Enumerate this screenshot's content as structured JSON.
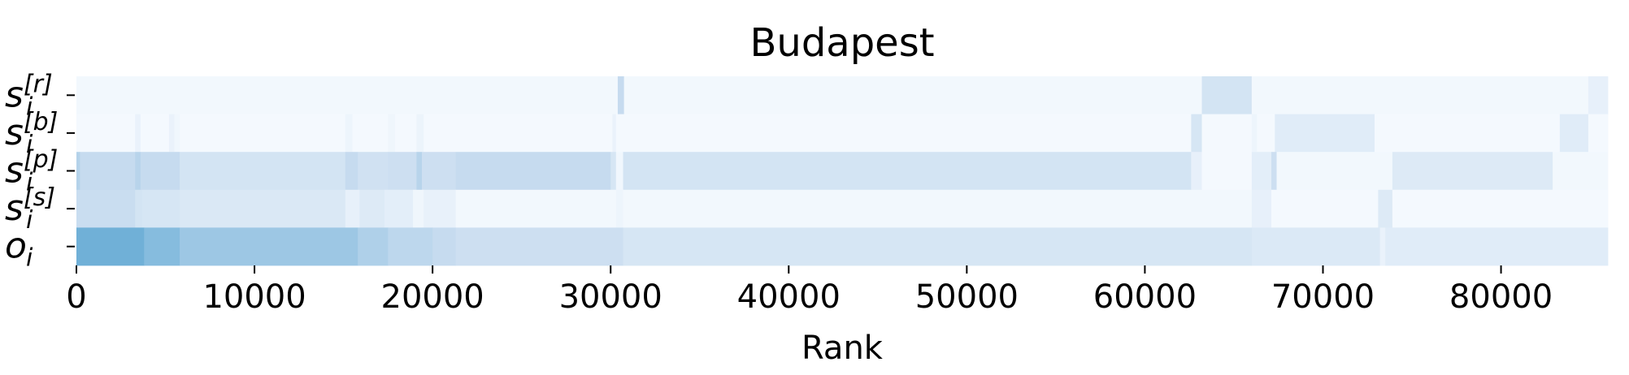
{
  "chart_data": {
    "type": "heatmap",
    "title": "Budapest",
    "xlabel": "Rank",
    "xlim": [
      0,
      86000
    ],
    "x_ticks": [
      0,
      10000,
      20000,
      30000,
      40000,
      50000,
      60000,
      70000,
      80000
    ],
    "x_tick_labels": [
      "0",
      "10000",
      "20000",
      "30000",
      "40000",
      "50000",
      "60000",
      "70000",
      "80000"
    ],
    "colormap": "Blues",
    "row_labels": [
      {
        "base": "s",
        "sub": "i",
        "sup": "[r]"
      },
      {
        "base": "s",
        "sub": "i",
        "sup": "[b]"
      },
      {
        "base": "s",
        "sub": "i",
        "sup": "[p]"
      },
      {
        "base": "s",
        "sub": "i",
        "sup": "[s]"
      },
      {
        "base": "o",
        "sub": "i",
        "sup": ""
      }
    ],
    "rows": [
      {
        "segments": [
          [
            0,
            30400,
            0.03
          ],
          [
            30400,
            30750,
            0.3
          ],
          [
            30750,
            63200,
            0.03
          ],
          [
            63200,
            66000,
            0.22
          ],
          [
            66000,
            84900,
            0.03
          ],
          [
            84900,
            86000,
            0.1
          ]
        ]
      },
      {
        "segments": [
          [
            0,
            3300,
            0.02
          ],
          [
            3300,
            3600,
            0.08
          ],
          [
            3600,
            5200,
            0.02
          ],
          [
            5200,
            5500,
            0.08
          ],
          [
            5500,
            5800,
            0.04
          ],
          [
            5800,
            15100,
            0.02
          ],
          [
            15100,
            15500,
            0.06
          ],
          [
            15500,
            17500,
            0.02
          ],
          [
            17500,
            17900,
            0.05
          ],
          [
            17900,
            19100,
            0.02
          ],
          [
            19100,
            19500,
            0.07
          ],
          [
            19500,
            30100,
            0.02
          ],
          [
            30100,
            30300,
            0.08
          ],
          [
            30300,
            62600,
            0.02
          ],
          [
            62600,
            63200,
            0.2
          ],
          [
            63200,
            66000,
            0.02
          ],
          [
            66000,
            66300,
            0.06
          ],
          [
            66300,
            67300,
            0.02
          ],
          [
            67300,
            72900,
            0.14
          ],
          [
            72900,
            83300,
            0.02
          ],
          [
            83300,
            84900,
            0.14
          ],
          [
            84900,
            86000,
            0.02
          ]
        ]
      },
      {
        "segments": [
          [
            0,
            200,
            0.38
          ],
          [
            200,
            3300,
            0.3
          ],
          [
            3300,
            3600,
            0.36
          ],
          [
            3600,
            5800,
            0.3
          ],
          [
            5800,
            15100,
            0.22
          ],
          [
            15100,
            15800,
            0.3
          ],
          [
            15800,
            17500,
            0.24
          ],
          [
            17500,
            19100,
            0.26
          ],
          [
            19100,
            19400,
            0.36
          ],
          [
            19400,
            21300,
            0.26
          ],
          [
            21300,
            30000,
            0.3
          ],
          [
            30000,
            30300,
            0.2
          ],
          [
            30300,
            30700,
            0.04
          ],
          [
            30700,
            62600,
            0.22
          ],
          [
            62600,
            63200,
            0.1
          ],
          [
            63200,
            66000,
            0.02
          ],
          [
            66000,
            67100,
            0.12
          ],
          [
            67100,
            67400,
            0.26
          ],
          [
            67400,
            73900,
            0.03
          ],
          [
            73900,
            82900,
            0.16
          ],
          [
            82900,
            86000,
            0.03
          ]
        ]
      },
      {
        "segments": [
          [
            0,
            3300,
            0.28
          ],
          [
            3300,
            3700,
            0.22
          ],
          [
            3700,
            5800,
            0.2
          ],
          [
            5800,
            15100,
            0.18
          ],
          [
            15100,
            15900,
            0.1
          ],
          [
            15900,
            17300,
            0.16
          ],
          [
            17300,
            18900,
            0.12
          ],
          [
            18900,
            19500,
            0.05
          ],
          [
            19500,
            21300,
            0.09
          ],
          [
            21300,
            30300,
            0.03
          ],
          [
            30300,
            30700,
            0.06
          ],
          [
            30700,
            66000,
            0.03
          ],
          [
            66000,
            67100,
            0.1
          ],
          [
            67100,
            73100,
            0.02
          ],
          [
            73100,
            73900,
            0.16
          ],
          [
            73900,
            86000,
            0.02
          ]
        ]
      },
      {
        "segments": [
          [
            0,
            3800,
            0.68
          ],
          [
            3800,
            5800,
            0.58
          ],
          [
            5800,
            15800,
            0.48
          ],
          [
            15800,
            17500,
            0.4
          ],
          [
            17500,
            20000,
            0.34
          ],
          [
            20000,
            21300,
            0.3
          ],
          [
            21300,
            30700,
            0.26
          ],
          [
            30700,
            66000,
            0.2
          ],
          [
            66000,
            73200,
            0.17
          ],
          [
            73200,
            73500,
            0.08
          ],
          [
            73500,
            86000,
            0.14
          ]
        ]
      }
    ]
  }
}
